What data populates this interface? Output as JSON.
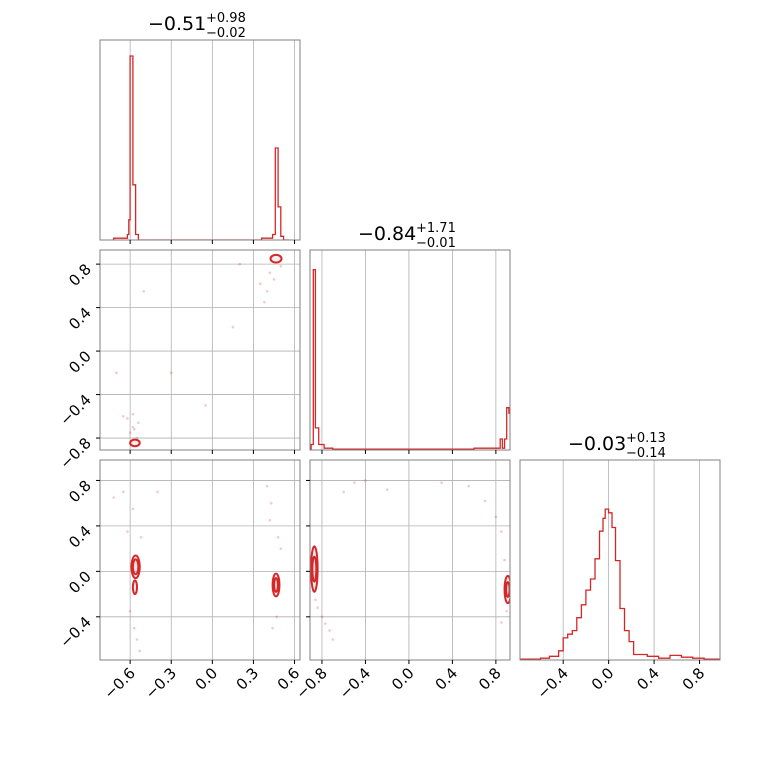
{
  "chart_data": {
    "type": "corner",
    "color": "#d62728",
    "grid": true,
    "parameters": [
      {
        "title_value": "−0.51",
        "title_plus": "+0.98",
        "title_minus": "−0.02"
      },
      {
        "title_value": "−0.84",
        "title_plus": "+1.71",
        "title_minus": "−0.01"
      },
      {
        "title_value": "−0.03",
        "title_plus": "+0.13",
        "title_minus": "−0.14"
      }
    ],
    "ranges": [
      [
        -0.82,
        0.64
      ],
      [
        -0.91,
        0.93
      ],
      [
        -0.78,
        0.98
      ]
    ],
    "x_ticks": [
      {
        "values": [
          -0.6,
          -0.3,
          0.0,
          0.3,
          0.6
        ],
        "labels": [
          "−0.6",
          "−0.3",
          "0.0",
          "0.3",
          "0.6"
        ]
      },
      {
        "values": [
          -0.8,
          -0.4,
          0.0,
          0.4,
          0.8
        ],
        "labels": [
          "−0.8",
          "−0.4",
          "0.0",
          "0.4",
          "0.8"
        ]
      },
      {
        "values": [
          -0.4,
          0.0,
          0.4,
          0.8
        ],
        "labels": [
          "−0.4",
          "0.0",
          "0.4",
          "0.8"
        ]
      }
    ],
    "y_ticks": [
      null,
      {
        "values": [
          0.8,
          0.4,
          0.0,
          -0.4,
          -0.8
        ],
        "labels": [
          "0.8",
          "0.4",
          "0.0",
          "−0.4",
          "−0.8"
        ]
      },
      {
        "values": [
          0.8,
          0.4,
          0.0,
          -0.4
        ],
        "labels": [
          "0.8",
          "0.4",
          "0.0",
          "−0.4"
        ]
      }
    ],
    "histograms": [
      {
        "bins": [
          [
            -0.72,
            -0.62,
            0.01
          ],
          [
            -0.62,
            -0.61,
            0.03
          ],
          [
            -0.61,
            -0.6,
            0.11
          ],
          [
            -0.6,
            -0.58,
            1.0
          ],
          [
            -0.58,
            -0.56,
            0.3
          ],
          [
            -0.56,
            -0.54,
            0.03
          ],
          [
            -0.54,
            0.36,
            0.0
          ],
          [
            0.36,
            0.44,
            0.01
          ],
          [
            0.44,
            0.46,
            0.03
          ],
          [
            0.46,
            0.48,
            0.5
          ],
          [
            0.48,
            0.5,
            0.18
          ],
          [
            0.5,
            0.52,
            0.02
          ],
          [
            0.52,
            0.56,
            0.0
          ]
        ]
      },
      {
        "bins": [
          [
            -0.9,
            -0.88,
            0.03
          ],
          [
            -0.88,
            -0.86,
            0.98
          ],
          [
            -0.86,
            -0.83,
            0.12
          ],
          [
            -0.83,
            -0.78,
            0.03
          ],
          [
            -0.78,
            -0.7,
            0.01
          ],
          [
            -0.7,
            0.6,
            0.005
          ],
          [
            0.6,
            0.84,
            0.01
          ],
          [
            0.84,
            0.86,
            0.06
          ],
          [
            0.86,
            0.88,
            0.01
          ],
          [
            0.88,
            0.9,
            0.06
          ],
          [
            0.9,
            0.92,
            0.23
          ],
          [
            0.92,
            0.93,
            0.2
          ]
        ]
      },
      {
        "bins": [
          [
            -0.78,
            -0.6,
            0.005
          ],
          [
            -0.6,
            -0.52,
            0.01
          ],
          [
            -0.52,
            -0.44,
            0.02
          ],
          [
            -0.44,
            -0.4,
            0.05
          ],
          [
            -0.4,
            -0.36,
            0.12
          ],
          [
            -0.36,
            -0.32,
            0.14
          ],
          [
            -0.32,
            -0.28,
            0.16
          ],
          [
            -0.28,
            -0.24,
            0.23
          ],
          [
            -0.24,
            -0.2,
            0.3
          ],
          [
            -0.2,
            -0.16,
            0.38
          ],
          [
            -0.16,
            -0.12,
            0.44
          ],
          [
            -0.12,
            -0.08,
            0.55
          ],
          [
            -0.08,
            -0.05,
            0.7
          ],
          [
            -0.05,
            -0.03,
            0.77
          ],
          [
            -0.03,
            0.0,
            0.82
          ],
          [
            0.0,
            0.03,
            0.8
          ],
          [
            0.03,
            0.06,
            0.72
          ],
          [
            0.06,
            0.1,
            0.54
          ],
          [
            0.1,
            0.14,
            0.28
          ],
          [
            0.14,
            0.18,
            0.16
          ],
          [
            0.18,
            0.22,
            0.1
          ],
          [
            0.22,
            0.34,
            0.03
          ],
          [
            0.34,
            0.44,
            0.02
          ],
          [
            0.44,
            0.54,
            0.01
          ],
          [
            0.54,
            0.64,
            0.025
          ],
          [
            0.64,
            0.74,
            0.015
          ],
          [
            0.74,
            0.84,
            0.01
          ],
          [
            0.84,
            0.98,
            0.005
          ]
        ]
      }
    ],
    "scatter_panels": [
      {
        "row": 1,
        "col": 0,
        "contours": [
          {
            "cx": -0.565,
            "cy": -0.845,
            "rx": 0.035,
            "ry": 0.03
          },
          {
            "cx": 0.465,
            "cy": 0.85,
            "rx": 0.04,
            "ry": 0.035
          }
        ],
        "points": [
          [
            -0.62,
            -0.62
          ],
          [
            -0.58,
            -0.7
          ],
          [
            -0.55,
            -0.8
          ],
          [
            -0.6,
            -0.75
          ],
          [
            -0.65,
            -0.6
          ],
          [
            -0.7,
            -0.2
          ],
          [
            -0.3,
            -0.2
          ],
          [
            -0.05,
            -0.5
          ],
          [
            0.2,
            0.8
          ],
          [
            0.35,
            0.62
          ],
          [
            0.4,
            0.55
          ],
          [
            0.42,
            0.72
          ],
          [
            0.5,
            0.78
          ],
          [
            0.38,
            0.45
          ],
          [
            0.15,
            0.22
          ],
          [
            -0.5,
            0.55
          ],
          [
            -0.58,
            -0.58
          ],
          [
            -0.57,
            -0.72
          ],
          [
            -0.54,
            -0.66
          ],
          [
            0.45,
            0.66
          ]
        ]
      },
      {
        "row": 2,
        "col": 0,
        "contours": [
          {
            "cx": -0.56,
            "cy": 0.04,
            "rx": 0.03,
            "ry": 0.1
          },
          {
            "cx": -0.56,
            "cy": 0.04,
            "rx": 0.02,
            "ry": 0.065
          },
          {
            "cx": -0.565,
            "cy": -0.14,
            "rx": 0.015,
            "ry": 0.06
          },
          {
            "cx": 0.465,
            "cy": -0.12,
            "rx": 0.025,
            "ry": 0.1
          },
          {
            "cx": 0.465,
            "cy": -0.12,
            "rx": 0.014,
            "ry": 0.06
          }
        ],
        "points": [
          [
            -0.6,
            -0.35
          ],
          [
            -0.57,
            -0.5
          ],
          [
            -0.55,
            -0.6
          ],
          [
            -0.52,
            0.3
          ],
          [
            -0.62,
            0.35
          ],
          [
            -0.72,
            0.65
          ],
          [
            -0.65,
            0.7
          ],
          [
            -0.4,
            0.7
          ],
          [
            0.4,
            0.75
          ],
          [
            0.43,
            0.6
          ],
          [
            0.42,
            0.45
          ],
          [
            0.48,
            0.3
          ],
          [
            0.5,
            0.2
          ],
          [
            0.47,
            -0.4
          ],
          [
            0.44,
            -0.5
          ],
          [
            -0.58,
            0.55
          ],
          [
            -0.53,
            -0.7
          ]
        ]
      },
      {
        "row": 2,
        "col": 1,
        "contours": [
          {
            "cx": -0.87,
            "cy": 0.02,
            "rx": 0.03,
            "ry": 0.2
          },
          {
            "cx": -0.87,
            "cy": 0.02,
            "rx": 0.018,
            "ry": 0.11
          },
          {
            "cx": 0.91,
            "cy": -0.16,
            "rx": 0.03,
            "ry": 0.12
          },
          {
            "cx": 0.91,
            "cy": -0.16,
            "rx": 0.016,
            "ry": 0.065
          }
        ],
        "points": [
          [
            -0.86,
            -0.25
          ],
          [
            -0.84,
            -0.32
          ],
          [
            -0.8,
            -0.4
          ],
          [
            -0.77,
            -0.46
          ],
          [
            -0.73,
            -0.52
          ],
          [
            -0.7,
            -0.6
          ],
          [
            -0.6,
            0.7
          ],
          [
            -0.5,
            0.78
          ],
          [
            -0.4,
            0.8
          ],
          [
            -0.2,
            0.72
          ],
          [
            0.3,
            0.78
          ],
          [
            0.55,
            0.75
          ],
          [
            0.7,
            0.62
          ],
          [
            0.8,
            0.48
          ],
          [
            0.85,
            0.35
          ],
          [
            0.88,
            0.1
          ],
          [
            0.9,
            -0.35
          ],
          [
            0.85,
            -0.45
          ]
        ]
      }
    ]
  }
}
